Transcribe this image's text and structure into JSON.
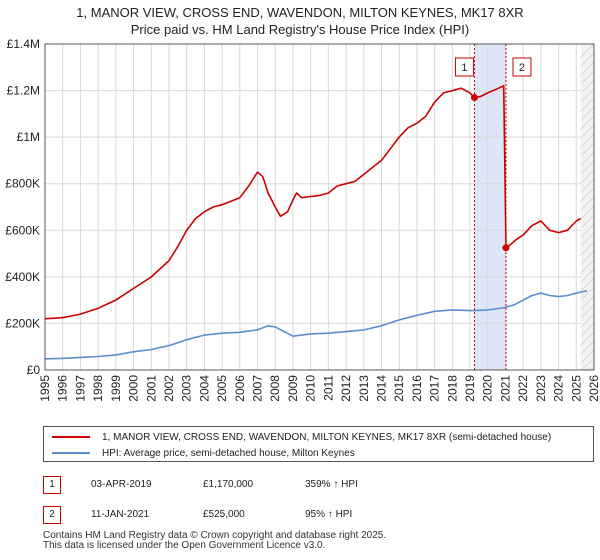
{
  "title_line1": "1, MANOR VIEW, CROSS END, WAVENDON, MILTON KEYNES, MK17 8XR",
  "title_line2": "Price paid vs. HM Land Registry's House Price Index (HPI)",
  "colors": {
    "property": "#cc0000",
    "hpi": "#5b8fd1",
    "highlight": "#dde6f6",
    "grid": "#d8d8d8"
  },
  "legend": {
    "property_label": "1, MANOR VIEW, CROSS END, WAVENDON, MILTON KEYNES, MK17 8XR (semi-detached house)",
    "hpi_label": "HPI: Average price, semi-detached house, Milton Keynes"
  },
  "transactions": [
    {
      "id": "1",
      "date": "03-APR-2019",
      "price": "£1,170,000",
      "hpi_change": "359% ↑ HPI"
    },
    {
      "id": "2",
      "date": "11-JAN-2021",
      "price": "£525,000",
      "hpi_change": "95% ↑ HPI"
    }
  ],
  "footer_line1": "Contains HM Land Registry data © Crown copyright and database right 2025.",
  "footer_line2": "This data is licensed under the Open Government Licence v3.0.",
  "chart_data": {
    "type": "line",
    "xlim": [
      1995,
      2026
    ],
    "ylim": [
      0,
      1400000
    ],
    "x_ticks": [
      "1995",
      "1996",
      "1997",
      "1998",
      "1999",
      "2000",
      "2001",
      "2002",
      "2003",
      "2004",
      "2005",
      "2006",
      "2007",
      "2008",
      "2009",
      "2010",
      "2011",
      "2012",
      "2013",
      "2014",
      "2015",
      "2016",
      "2017",
      "2018",
      "2019",
      "2020",
      "2021",
      "2022",
      "2023",
      "2024",
      "2025",
      "2026"
    ],
    "y_ticks": [
      {
        "value": 0,
        "label": "£0"
      },
      {
        "value": 200000,
        "label": "£200K"
      },
      {
        "value": 400000,
        "label": "£400K"
      },
      {
        "value": 600000,
        "label": "£600K"
      },
      {
        "value": 800000,
        "label": "£800K"
      },
      {
        "value": 1000000,
        "label": "£1M"
      },
      {
        "value": 1200000,
        "label": "£1.2M"
      },
      {
        "value": 1400000,
        "label": "£1.4M"
      }
    ],
    "highlight_range": [
      2019.25,
      2021.03
    ],
    "future_from": 2025.25,
    "series": [
      {
        "name": "1, MANOR VIEW, CROSS END, WAVENDON, MILTON KEYNES, MK17 8XR (semi-detached house)",
        "color": "#cc0000",
        "x": [
          1995,
          1996,
          1997,
          1998,
          1999,
          2000,
          2001,
          2002,
          2002.5,
          2003,
          2003.5,
          2004,
          2004.5,
          2005,
          2006,
          2006.5,
          2007,
          2007.3,
          2007.6,
          2008,
          2008.3,
          2008.7,
          2009,
          2009.2,
          2009.5,
          2010,
          2010.5,
          2011,
          2011.5,
          2012,
          2012.5,
          2013,
          2013.5,
          2014,
          2014.5,
          2015,
          2015.5,
          2016,
          2016.5,
          2017,
          2017.5,
          2018,
          2018.5,
          2019,
          2019.25,
          2019.6,
          2020,
          2020.3,
          2020.6,
          2020.9,
          2021.03,
          2021.3,
          2021.6,
          2022,
          2022.5,
          2023,
          2023.5,
          2024,
          2024.5,
          2025,
          2025.25
        ],
        "y": [
          220000,
          225000,
          240000,
          265000,
          300000,
          350000,
          400000,
          470000,
          530000,
          600000,
          650000,
          680000,
          700000,
          710000,
          740000,
          790000,
          850000,
          830000,
          760000,
          700000,
          660000,
          680000,
          730000,
          760000,
          740000,
          745000,
          750000,
          760000,
          790000,
          800000,
          810000,
          840000,
          870000,
          900000,
          950000,
          1000000,
          1040000,
          1060000,
          1090000,
          1150000,
          1190000,
          1200000,
          1210000,
          1190000,
          1170000,
          1175000,
          1190000,
          1200000,
          1210000,
          1220000,
          525000,
          540000,
          560000,
          580000,
          620000,
          640000,
          600000,
          590000,
          600000,
          640000,
          650000
        ]
      },
      {
        "name": "HPI: Average price, semi-detached house, Milton Keynes",
        "color": "#5b8fd1",
        "x": [
          1995,
          1996,
          1997,
          1998,
          1999,
          2000,
          2001,
          2002,
          2003,
          2004,
          2005,
          2006,
          2007,
          2007.6,
          2008,
          2008.5,
          2009,
          2009.5,
          2010,
          2011,
          2012,
          2013,
          2014,
          2015,
          2016,
          2017,
          2018,
          2019,
          2019.25,
          2020,
          2021,
          2021.03,
          2021.5,
          2022,
          2022.5,
          2023,
          2023.5,
          2024,
          2024.5,
          2025,
          2025.25,
          2025.6
        ],
        "y": [
          48000,
          50000,
          54000,
          58000,
          65000,
          78000,
          88000,
          105000,
          130000,
          150000,
          158000,
          162000,
          172000,
          190000,
          185000,
          165000,
          145000,
          150000,
          155000,
          158000,
          165000,
          172000,
          190000,
          215000,
          235000,
          252000,
          258000,
          255000,
          255000,
          258000,
          268000,
          270000,
          280000,
          300000,
          320000,
          330000,
          320000,
          315000,
          320000,
          330000,
          335000,
          340000
        ]
      }
    ],
    "markers": [
      {
        "label": "1",
        "x": 2019.25,
        "y": 1170000
      },
      {
        "label": "2",
        "x": 2021.03,
        "y": 525000
      }
    ]
  }
}
